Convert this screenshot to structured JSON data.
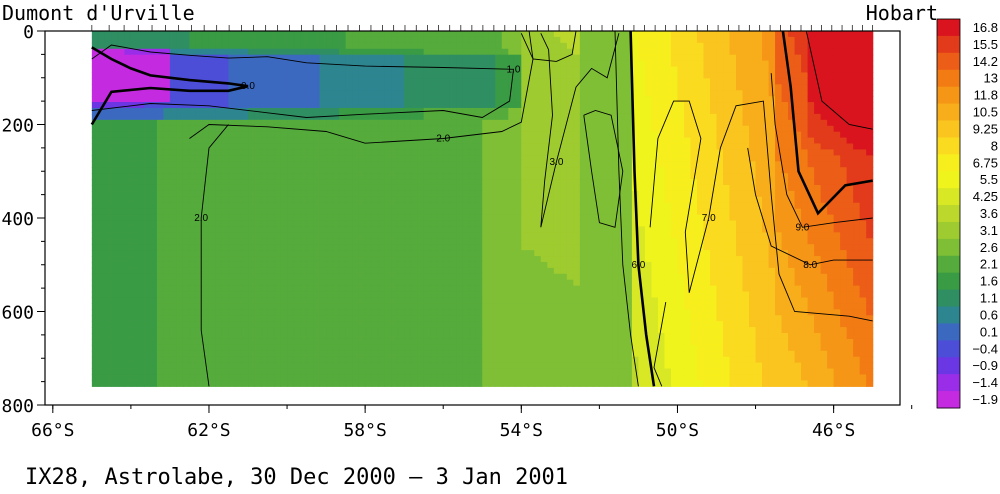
{
  "chart_data": {
    "type": "heatmap",
    "title": "IX28, Astrolabe, 30 Dec 2000 –  3 Jan 2001",
    "left_label": "Dumont d'Urville",
    "right_label": "Hobart",
    "xlabel": "",
    "ylabel": "",
    "x_ticks": [
      "66°S",
      "62°S",
      "58°S",
      "54°S",
      "50°S",
      "46°S"
    ],
    "x_tick_values": [
      -66,
      -62,
      -58,
      -54,
      -50,
      -46
    ],
    "xlim": [
      -66.2,
      -44.3
    ],
    "y_ticks": [
      "0",
      "200",
      "400",
      "600",
      "800"
    ],
    "y_tick_values": [
      0,
      200,
      400,
      600,
      800
    ],
    "ylim": [
      0,
      800
    ],
    "y_inverted": true,
    "data_extent": {
      "x": [
        -65.0,
        -45.0
      ],
      "depth": [
        0,
        760
      ]
    },
    "colorbar": {
      "labels": [
        "16.8",
        "15.5",
        "14.2",
        "13",
        "11.8",
        "10.5",
        "9.25",
        "8",
        "6.75",
        "5.5",
        "4.25",
        "3.6",
        "3.1",
        "2.6",
        "2.1",
        "1.6",
        "1.1",
        "0.6",
        "0.1",
        "−0.4",
        "−0.9",
        "−1.4",
        "−1.9"
      ],
      "values": [
        16.8,
        15.5,
        14.2,
        13,
        11.8,
        10.5,
        9.25,
        8,
        6.75,
        5.5,
        4.25,
        3.6,
        3.1,
        2.6,
        2.1,
        1.6,
        1.1,
        0.6,
        0.1,
        -0.4,
        -0.9,
        -1.4,
        -1.9
      ],
      "colors": [
        "#d9141e",
        "#e23b1b",
        "#ec5d18",
        "#f27b14",
        "#f59616",
        "#f7ae1a",
        "#f9c51e",
        "#fadb1f",
        "#f7ee1d",
        "#eef41c",
        "#d9e825",
        "#bcd82c",
        "#9ecb2f",
        "#7fbf36",
        "#55ab3b",
        "#3a9b45",
        "#2f8f63",
        "#2d8590",
        "#3c69c0",
        "#4c4ed8",
        "#6b36e3",
        "#9a2ee8",
        "#c42be0"
      ]
    },
    "contours": [
      {
        "label": "0.0",
        "points": [
          [
            -65,
            35
          ],
          [
            -64.5,
            60
          ],
          [
            -64,
            80
          ],
          [
            -63.5,
            95
          ],
          [
            -62.5,
            105
          ],
          [
            -61.5,
            112
          ],
          [
            -61,
            118
          ],
          [
            -61.5,
            128
          ],
          [
            -62.5,
            128
          ],
          [
            -63.5,
            122
          ],
          [
            -64.5,
            130
          ],
          [
            -65,
            200
          ]
        ]
      },
      {
        "label": "1.0",
        "points": [
          [
            -65,
            60
          ],
          [
            -64.5,
            30
          ],
          [
            -63.5,
            45
          ],
          [
            -62.5,
            52
          ],
          [
            -61.5,
            58
          ],
          [
            -60.5,
            55
          ],
          [
            -59.5,
            68
          ],
          [
            -58,
            75
          ],
          [
            -56,
            78
          ],
          [
            -54.2,
            82
          ],
          [
            -54.3,
            150
          ],
          [
            -55,
            185
          ],
          [
            -56,
            170
          ],
          [
            -58,
            178
          ],
          [
            -59.5,
            185
          ],
          [
            -60.5,
            175
          ],
          [
            -62,
            160
          ],
          [
            -63.5,
            155
          ],
          [
            -65,
            170
          ]
        ]
      },
      {
        "label": "2.0",
        "points": [
          [
            -62.5,
            230
          ],
          [
            -62,
            200
          ],
          [
            -60.5,
            205
          ],
          [
            -59,
            215
          ],
          [
            -58,
            240
          ],
          [
            -56,
            230
          ],
          [
            -54.5,
            215
          ],
          [
            -54,
            195
          ],
          [
            -53.7,
            60
          ],
          [
            -54,
            5
          ]
        ]
      },
      {
        "label": "2.0",
        "points": [
          [
            -62,
            760
          ],
          [
            -62.2,
            640
          ],
          [
            -62.2,
            400
          ],
          [
            -62,
            250
          ],
          [
            -61.5,
            200
          ]
        ]
      },
      {
        "label": "3.0",
        "points": [
          [
            -53.5,
            5
          ],
          [
            -53.3,
            40
          ],
          [
            -53.2,
            180
          ],
          [
            -53.4,
            320
          ],
          [
            -53.5,
            420
          ],
          [
            -53.1,
            280
          ],
          [
            -52.6,
            120
          ],
          [
            -52.2,
            80
          ],
          [
            -51.8,
            100
          ],
          [
            -51.5,
            5
          ]
        ]
      },
      {
        "label": "",
        "points": [
          [
            -53.8,
            0
          ],
          [
            -53.7,
            60
          ],
          [
            -53.1,
            65
          ],
          [
            -52.7,
            50
          ],
          [
            -52.6,
            0
          ]
        ]
      },
      {
        "label": "",
        "points": [
          [
            -52.4,
            180
          ],
          [
            -52.2,
            300
          ],
          [
            -52.0,
            410
          ],
          [
            -51.6,
            420
          ],
          [
            -51.4,
            300
          ],
          [
            -51.7,
            180
          ],
          [
            -52.1,
            170
          ],
          [
            -52.4,
            180
          ]
        ]
      },
      {
        "label": "6.0",
        "points": [
          [
            -51.2,
            0
          ],
          [
            -51.1,
            300
          ],
          [
            -51.0,
            500
          ],
          [
            -50.8,
            650
          ],
          [
            -50.6,
            760
          ]
        ]
      },
      {
        "label": "",
        "points": [
          [
            -51.6,
            0
          ],
          [
            -51.5,
            300
          ],
          [
            -51.4,
            500
          ],
          [
            -51.2,
            650
          ],
          [
            -51.0,
            760
          ]
        ]
      },
      {
        "label": "7.0",
        "points": [
          [
            -50.7,
            420
          ],
          [
            -50.5,
            230
          ],
          [
            -50.1,
            150
          ],
          [
            -49.7,
            150
          ],
          [
            -49.4,
            230
          ],
          [
            -49.6,
            330
          ],
          [
            -49.8,
            430
          ],
          [
            -49.7,
            560
          ],
          [
            -49.2,
            400
          ],
          [
            -48.9,
            250
          ],
          [
            -48.5,
            160
          ],
          [
            -47.8,
            150
          ],
          [
            -47.6,
            350
          ],
          [
            -47.4,
            520
          ],
          [
            -47.0,
            600
          ],
          [
            -45.6,
            610
          ],
          [
            -45,
            620
          ]
        ]
      },
      {
        "label": "",
        "points": [
          [
            -50.3,
            580
          ],
          [
            -50.6,
            720
          ],
          [
            -50.4,
            760
          ]
        ]
      },
      {
        "label": "8.0",
        "points": [
          [
            -48.2,
            250
          ],
          [
            -48.0,
            350
          ],
          [
            -47.6,
            460
          ],
          [
            -46.6,
            500
          ],
          [
            -46,
            490
          ],
          [
            -45,
            490
          ]
        ]
      },
      {
        "label": "9.0",
        "points": [
          [
            -47.6,
            90
          ],
          [
            -47.5,
            200
          ],
          [
            -47.2,
            350
          ],
          [
            -46.8,
            420
          ],
          [
            -46,
            410
          ],
          [
            -45,
            400
          ]
        ]
      },
      {
        "label": "",
        "points": [
          [
            -47.3,
            0
          ],
          [
            -47.1,
            120
          ],
          [
            -46.9,
            300
          ],
          [
            -46.4,
            390
          ],
          [
            -45.7,
            330
          ],
          [
            -45,
            320
          ]
        ]
      },
      {
        "label": "",
        "points": [
          [
            -46.7,
            0
          ],
          [
            -46.3,
            150
          ],
          [
            -45.6,
            200
          ],
          [
            -45,
            210
          ]
        ]
      }
    ]
  }
}
